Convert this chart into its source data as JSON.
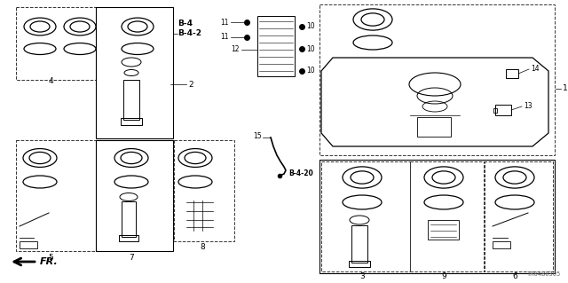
{
  "bg_color": "#ffffff",
  "line_color": "#000000",
  "diagram_code": "TR04B0305",
  "fig_w": 6.4,
  "fig_h": 3.19,
  "dpi": 100
}
